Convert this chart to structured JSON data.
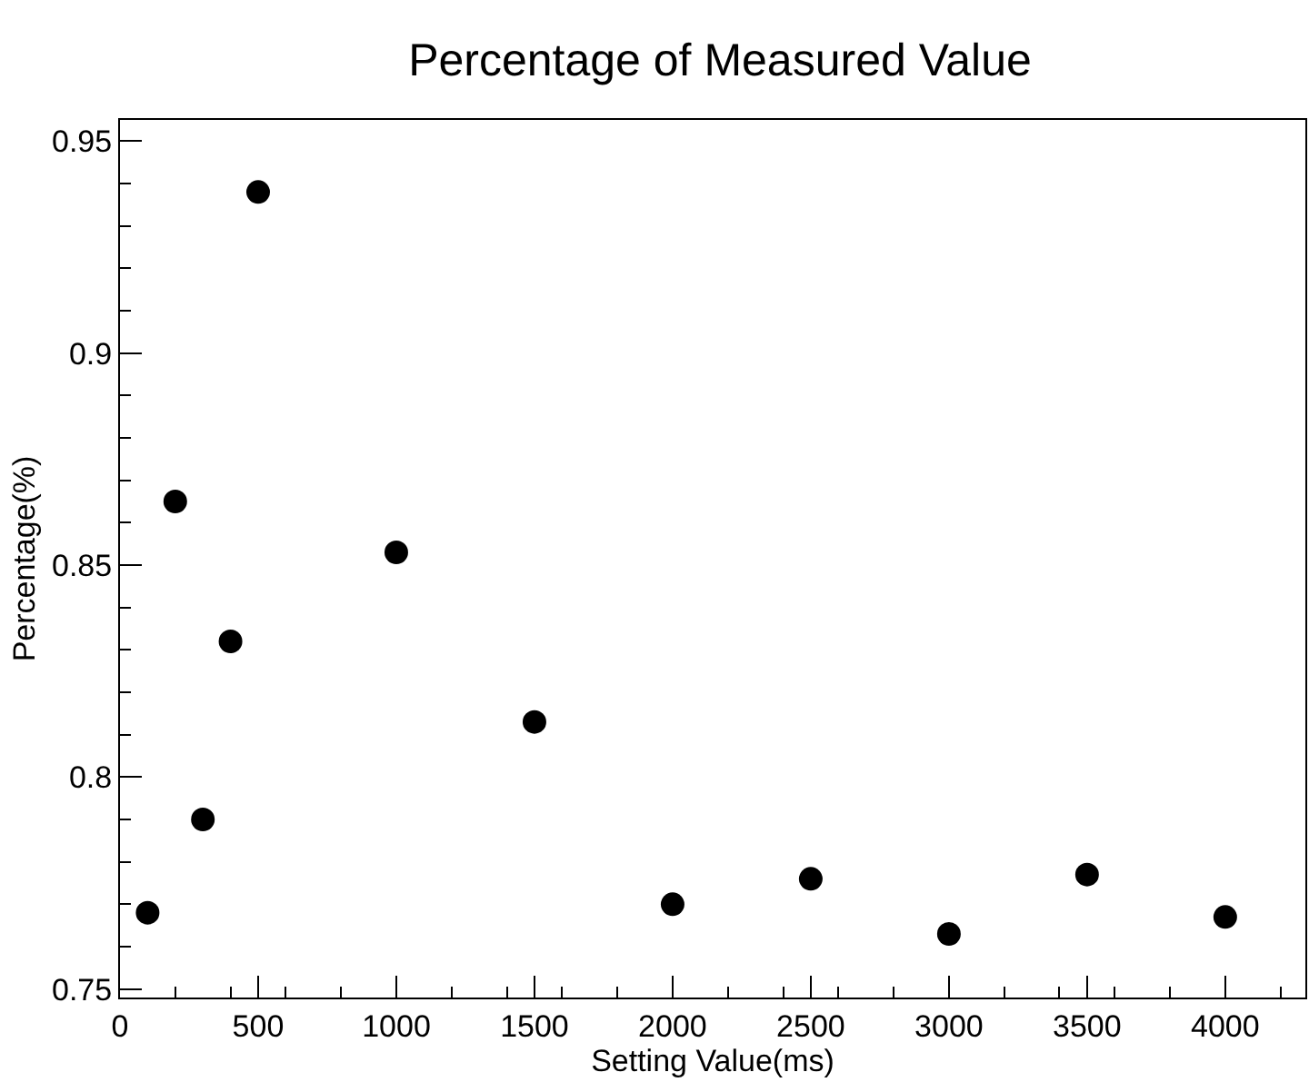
{
  "chart_data": {
    "type": "scatter",
    "title": "Percentage of Measured Value",
    "xlabel": "Setting Value(ms)",
    "ylabel": "Percentage(%)",
    "x": [
      100,
      200,
      300,
      400,
      500,
      1000,
      1500,
      2000,
      2500,
      3000,
      3500,
      4000
    ],
    "values": [
      0.768,
      0.865,
      0.79,
      0.832,
      0.938,
      0.853,
      0.813,
      0.77,
      0.776,
      0.763,
      0.777,
      0.767
    ],
    "color": "#000000",
    "marker": "circle",
    "grid": false,
    "legend": false,
    "xlim": [
      0,
      4290
    ],
    "xticks": [
      0,
      500,
      1000,
      1500,
      2000,
      2500,
      3000,
      3500,
      4000
    ],
    "ylim": [
      0.748,
      0.955
    ],
    "yticks": [
      0.75,
      0.8,
      0.85,
      0.9,
      0.95
    ]
  }
}
